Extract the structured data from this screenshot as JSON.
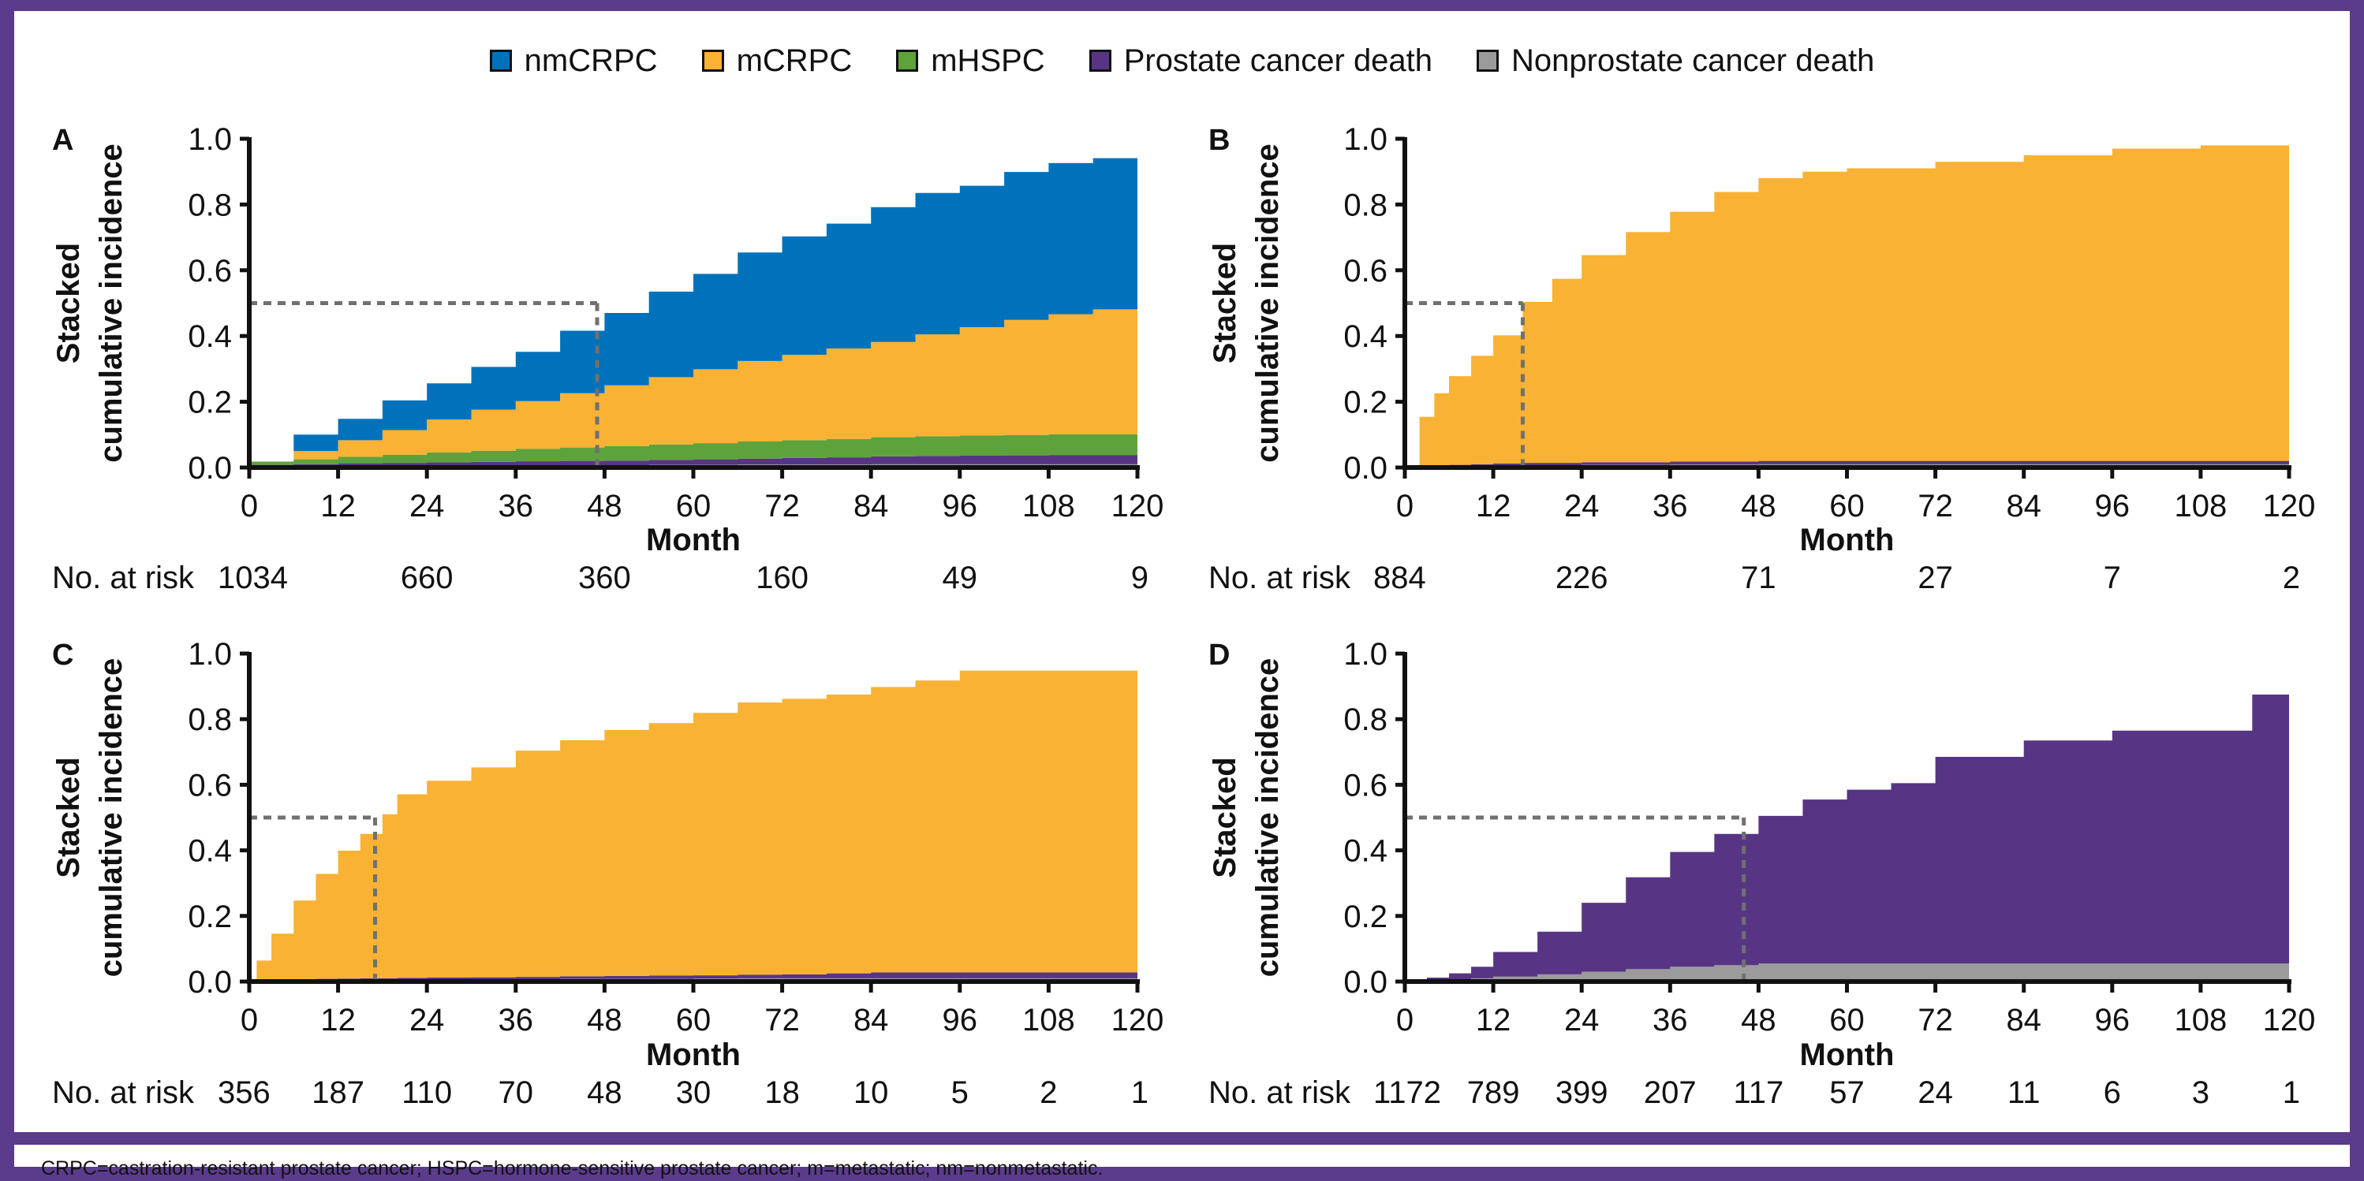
{
  "legend": {
    "items": [
      {
        "label": "nmCRPC",
        "color": "#0072bc",
        "icon": "square-swatch"
      },
      {
        "label": "mCRPC",
        "color": "#f9b233",
        "icon": "square-swatch"
      },
      {
        "label": "mHSPC",
        "color": "#5ea23c",
        "icon": "square-swatch"
      },
      {
        "label": "Prostate cancer death",
        "color": "#573584",
        "icon": "square-swatch"
      },
      {
        "label": "Nonprostate cancer death",
        "color": "#9b9b9b",
        "icon": "square-swatch"
      }
    ]
  },
  "footnote": "CRPC=castration-resistant prostate cancer; HSPC=hormone-sensitive prostate cancer; m=metastatic; nm=nonmetastatic.",
  "colors": {
    "frame": "#5a3b8c",
    "nmCRPC": "#0072bc",
    "mCRPC": "#f9b233",
    "mHSPC": "#5ea23c",
    "pc_death": "#573584",
    "nonpc_death": "#9b9b9b",
    "median_line": "#707070"
  },
  "chart_data": [
    {
      "type": "area",
      "panel": "A",
      "xlabel": "Month",
      "ylabel": [
        "Stacked",
        "cumulative incidence"
      ],
      "xlim": [
        0,
        120
      ],
      "ylim": [
        0,
        1.0
      ],
      "xticks": [
        0,
        12,
        24,
        36,
        48,
        60,
        72,
        84,
        96,
        108,
        120
      ],
      "yticks": [
        "0.0",
        "0.2",
        "0.4",
        "0.6",
        "0.8",
        "1.0"
      ],
      "median_month": 47,
      "risk_label": "No. at risk",
      "at_risk": [
        {
          "x": 0,
          "n": "1034"
        },
        {
          "x": 24,
          "n": "660"
        },
        {
          "x": 48,
          "n": "360"
        },
        {
          "x": 72,
          "n": "160"
        },
        {
          "x": 96,
          "n": "49"
        },
        {
          "x": 120,
          "n": "9"
        }
      ],
      "x": [
        0,
        6,
        12,
        18,
        24,
        30,
        36,
        42,
        48,
        54,
        60,
        66,
        72,
        78,
        84,
        90,
        96,
        102,
        108,
        114,
        120
      ],
      "series": [
        {
          "key": "nonpc_death",
          "values": [
            0.003,
            0.004,
            0.005,
            0.005,
            0.006,
            0.006,
            0.007,
            0.007,
            0.007,
            0.008,
            0.008,
            0.009,
            0.009,
            0.009,
            0.01,
            0.01,
            0.01,
            0.01,
            0.01,
            0.01,
            0.01
          ]
        },
        {
          "key": "pc_death",
          "values": [
            0.005,
            0.006,
            0.008,
            0.009,
            0.01,
            0.011,
            0.012,
            0.013,
            0.014,
            0.015,
            0.016,
            0.018,
            0.02,
            0.022,
            0.024,
            0.025,
            0.026,
            0.027,
            0.028,
            0.028,
            0.028
          ]
        },
        {
          "key": "mHSPC",
          "values": [
            0.01,
            0.015,
            0.02,
            0.025,
            0.03,
            0.034,
            0.038,
            0.041,
            0.044,
            0.047,
            0.05,
            0.052,
            0.054,
            0.056,
            0.058,
            0.06,
            0.061,
            0.062,
            0.063,
            0.063,
            0.063
          ]
        },
        {
          "key": "mCRPC",
          "values": [
            0.0,
            0.025,
            0.05,
            0.075,
            0.1,
            0.125,
            0.145,
            0.165,
            0.185,
            0.205,
            0.225,
            0.245,
            0.26,
            0.275,
            0.29,
            0.31,
            0.33,
            0.35,
            0.365,
            0.38,
            0.395
          ]
        },
        {
          "key": "nmCRPC",
          "values": [
            0.0,
            0.05,
            0.065,
            0.09,
            0.11,
            0.13,
            0.15,
            0.19,
            0.22,
            0.26,
            0.29,
            0.33,
            0.36,
            0.38,
            0.41,
            0.43,
            0.43,
            0.45,
            0.46,
            0.46,
            0.47
          ]
        }
      ]
    },
    {
      "type": "area",
      "panel": "B",
      "xlabel": "Month",
      "ylabel": [
        "Stacked",
        "cumulative incidence"
      ],
      "xlim": [
        0,
        120
      ],
      "ylim": [
        0,
        1.0
      ],
      "xticks": [
        0,
        12,
        24,
        36,
        48,
        60,
        72,
        84,
        96,
        108,
        120
      ],
      "yticks": [
        "0.0",
        "0.2",
        "0.4",
        "0.6",
        "0.8",
        "1.0"
      ],
      "median_month": 16,
      "risk_label": "No. at risk",
      "at_risk": [
        {
          "x": 0,
          "n": "884"
        },
        {
          "x": 24,
          "n": "226"
        },
        {
          "x": 48,
          "n": "71"
        },
        {
          "x": 72,
          "n": "27"
        },
        {
          "x": 96,
          "n": "7"
        },
        {
          "x": 120,
          "n": "2"
        }
      ],
      "x": [
        0,
        2,
        4,
        6,
        9,
        12,
        16,
        20,
        24,
        30,
        36,
        42,
        48,
        54,
        60,
        72,
        84,
        96,
        108,
        120
      ],
      "series": [
        {
          "key": "nonpc_death",
          "values": [
            0,
            0.002,
            0.003,
            0.004,
            0.005,
            0.006,
            0.007,
            0.007,
            0.008,
            0.008,
            0.009,
            0.009,
            0.01,
            0.01,
            0.01,
            0.01,
            0.01,
            0.01,
            0.01,
            0.01
          ]
        },
        {
          "key": "pc_death",
          "values": [
            0,
            0.002,
            0.003,
            0.004,
            0.005,
            0.006,
            0.007,
            0.007,
            0.008,
            0.008,
            0.009,
            0.009,
            0.01,
            0.01,
            0.01,
            0.01,
            0.01,
            0.01,
            0.01,
            0.01
          ]
        },
        {
          "key": "mCRPC",
          "values": [
            0,
            0.15,
            0.22,
            0.27,
            0.33,
            0.39,
            0.49,
            0.56,
            0.63,
            0.7,
            0.76,
            0.82,
            0.86,
            0.88,
            0.89,
            0.91,
            0.93,
            0.95,
            0.96,
            0.98
          ]
        }
      ]
    },
    {
      "type": "area",
      "panel": "C",
      "xlabel": "Month",
      "ylabel": [
        "Stacked",
        "cumulative incidence"
      ],
      "xlim": [
        0,
        120
      ],
      "ylim": [
        0,
        1.0
      ],
      "xticks": [
        0,
        12,
        24,
        36,
        48,
        60,
        72,
        84,
        96,
        108,
        120
      ],
      "yticks": [
        "0.0",
        "0.2",
        "0.4",
        "0.6",
        "0.8",
        "1.0"
      ],
      "median_month": 17,
      "risk_label": "No. at risk",
      "at_risk": [
        {
          "x": 0,
          "n": "356"
        },
        {
          "x": 12,
          "n": "187"
        },
        {
          "x": 24,
          "n": "110"
        },
        {
          "x": 36,
          "n": "70"
        },
        {
          "x": 48,
          "n": "48"
        },
        {
          "x": 60,
          "n": "30"
        },
        {
          "x": 72,
          "n": "18"
        },
        {
          "x": 84,
          "n": "10"
        },
        {
          "x": 96,
          "n": "5"
        },
        {
          "x": 108,
          "n": "2"
        },
        {
          "x": 120,
          "n": "1"
        }
      ],
      "x": [
        0,
        1,
        3,
        6,
        9,
        12,
        15,
        18,
        20,
        24,
        30,
        36,
        42,
        48,
        54,
        60,
        66,
        72,
        78,
        84,
        90,
        96,
        108,
        120
      ],
      "series": [
        {
          "key": "nonpc_death",
          "values": [
            0,
            0.003,
            0.004,
            0.005,
            0.005,
            0.006,
            0.006,
            0.006,
            0.007,
            0.007,
            0.007,
            0.007,
            0.008,
            0.008,
            0.008,
            0.009,
            0.01,
            0.01,
            0.01,
            0.01,
            0.01,
            0.01,
            0.01,
            0.01
          ]
        },
        {
          "key": "pc_death",
          "values": [
            0,
            0.001,
            0.002,
            0.002,
            0.003,
            0.003,
            0.004,
            0.004,
            0.004,
            0.005,
            0.006,
            0.007,
            0.008,
            0.009,
            0.01,
            0.01,
            0.011,
            0.012,
            0.015,
            0.018,
            0.018,
            0.018,
            0.018,
            0.018
          ]
        },
        {
          "key": "mCRPC",
          "values": [
            0,
            0.06,
            0.14,
            0.24,
            0.32,
            0.39,
            0.44,
            0.5,
            0.56,
            0.6,
            0.64,
            0.69,
            0.72,
            0.75,
            0.77,
            0.8,
            0.83,
            0.84,
            0.85,
            0.87,
            0.89,
            0.92,
            0.92,
            0.92
          ]
        }
      ]
    },
    {
      "type": "area",
      "panel": "D",
      "xlabel": "Month",
      "ylabel": [
        "Stacked",
        "cumulative incidence"
      ],
      "xlim": [
        0,
        120
      ],
      "ylim": [
        0,
        1.0
      ],
      "xticks": [
        0,
        12,
        24,
        36,
        48,
        60,
        72,
        84,
        96,
        108,
        120
      ],
      "yticks": [
        "0.0",
        "0.2",
        "0.4",
        "0.6",
        "0.8",
        "1.0"
      ],
      "median_month": 46,
      "risk_label": "No. at risk",
      "at_risk": [
        {
          "x": 0,
          "n": "1172"
        },
        {
          "x": 12,
          "n": "789"
        },
        {
          "x": 24,
          "n": "399"
        },
        {
          "x": 36,
          "n": "207"
        },
        {
          "x": 48,
          "n": "117"
        },
        {
          "x": 60,
          "n": "57"
        },
        {
          "x": 72,
          "n": "24"
        },
        {
          "x": 84,
          "n": "11"
        },
        {
          "x": 96,
          "n": "6"
        },
        {
          "x": 108,
          "n": "3"
        },
        {
          "x": 120,
          "n": "1"
        }
      ],
      "x": [
        0,
        3,
        6,
        9,
        12,
        18,
        24,
        30,
        36,
        42,
        48,
        54,
        60,
        66,
        72,
        84,
        96,
        108,
        114,
        115,
        120
      ],
      "series": [
        {
          "key": "nonpc_death",
          "values": [
            0,
            0.002,
            0.005,
            0.01,
            0.015,
            0.022,
            0.03,
            0.038,
            0.045,
            0.05,
            0.055,
            0.055,
            0.055,
            0.055,
            0.055,
            0.055,
            0.055,
            0.055,
            0.055,
            0.055,
            0.055
          ]
        },
        {
          "key": "pc_death",
          "values": [
            0,
            0.01,
            0.02,
            0.035,
            0.075,
            0.13,
            0.21,
            0.28,
            0.35,
            0.4,
            0.45,
            0.5,
            0.53,
            0.55,
            0.63,
            0.68,
            0.71,
            0.71,
            0.71,
            0.82,
            0.82
          ]
        }
      ]
    }
  ]
}
